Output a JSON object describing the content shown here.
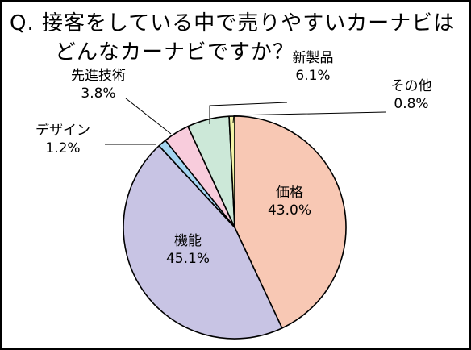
{
  "title": {
    "line1": "Q. 接客をしている中で売りやすいカーナビは",
    "line2": "どんなカーナビですか？"
  },
  "chart_data": {
    "type": "pie",
    "start": "12 o'clock, clockwise",
    "slices": [
      {
        "label": "価格",
        "value": 43.0,
        "value_text": "43.0%",
        "color": "#F8C8B4"
      },
      {
        "label": "機能",
        "value": 45.1,
        "value_text": "45.1%",
        "color": "#C8C4E4"
      },
      {
        "label": "デザイン",
        "value": 1.2,
        "value_text": "1.2%",
        "color": "#A4D4F0"
      },
      {
        "label": "先進技術",
        "value": 3.8,
        "value_text": "3.8%",
        "color": "#F8CCDC"
      },
      {
        "label": "新製品",
        "value": 6.1,
        "value_text": "6.1%",
        "color": "#CCE8D8"
      },
      {
        "label": "その他",
        "value": 0.8,
        "value_text": "0.8%",
        "color": "#F4F4A8"
      }
    ]
  }
}
